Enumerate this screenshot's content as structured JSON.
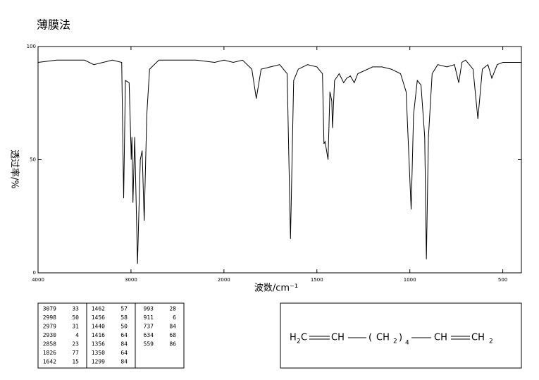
{
  "chart_data": {
    "type": "line",
    "title": "薄膜法",
    "x_label": "波数/cm⁻¹",
    "y_label": "透过率/%",
    "xlim": [
      4000,
      400
    ],
    "xscale_break": 2000,
    "xticks": [
      4000,
      3000,
      2000,
      1500,
      1000,
      500
    ],
    "ylim": [
      0,
      100
    ],
    "yticks": [
      0,
      50,
      100
    ],
    "color": "#000000",
    "x": [
      4000,
      3800,
      3500,
      3400,
      3200,
      3100,
      3079,
      3060,
      3020,
      3000,
      2998,
      2990,
      2979,
      2960,
      2930,
      2900,
      2880,
      2858,
      2830,
      2800,
      2700,
      2500,
      2300,
      2100,
      2000,
      1950,
      1900,
      1850,
      1826,
      1800,
      1700,
      1660,
      1642,
      1625,
      1600,
      1550,
      1500,
      1470,
      1462,
      1456,
      1440,
      1430,
      1420,
      1416,
      1405,
      1380,
      1356,
      1340,
      1320,
      1299,
      1280,
      1200,
      1150,
      1100,
      1050,
      1020,
      993,
      980,
      960,
      940,
      920,
      911,
      900,
      880,
      850,
      800,
      760,
      737,
      720,
      700,
      660,
      634,
      610,
      580,
      559,
      530,
      500,
      450,
      400
    ],
    "values": [
      93,
      94,
      94,
      92,
      94,
      93,
      33,
      85,
      84,
      55,
      50,
      60,
      31,
      60,
      4,
      50,
      54,
      23,
      70,
      90,
      94,
      94,
      94,
      93,
      94,
      93,
      94,
      90,
      77,
      90,
      92,
      88,
      15,
      85,
      90,
      92,
      91,
      88,
      57,
      58,
      50,
      80,
      76,
      64,
      85,
      88,
      84,
      86,
      87,
      84,
      88,
      91,
      91,
      90,
      88,
      80,
      28,
      70,
      85,
      83,
      60,
      6,
      60,
      88,
      92,
      91,
      92,
      84,
      93,
      94,
      90,
      68,
      90,
      92,
      86,
      92,
      93,
      93,
      93
    ]
  },
  "peak_table": {
    "columns": [
      [
        [
          3079,
          33
        ],
        [
          2998,
          50
        ],
        [
          2979,
          31
        ],
        [
          2930,
          4
        ],
        [
          2858,
          23
        ],
        [
          1826,
          77
        ],
        [
          1642,
          15
        ]
      ],
      [
        [
          1462,
          57
        ],
        [
          1456,
          58
        ],
        [
          1440,
          50
        ],
        [
          1416,
          64
        ],
        [
          1356,
          84
        ],
        [
          1350,
          64
        ],
        [
          1299,
          84
        ]
      ],
      [
        [
          993,
          28
        ],
        [
          911,
          6
        ],
        [
          737,
          84
        ],
        [
          634,
          68
        ],
        [
          559,
          86
        ]
      ]
    ]
  },
  "structure": {
    "parts": [
      "H",
      "2",
      "C",
      "CH",
      "(",
      "CH",
      "2",
      ")",
      "4",
      "CH",
      "CH",
      "2"
    ]
  }
}
